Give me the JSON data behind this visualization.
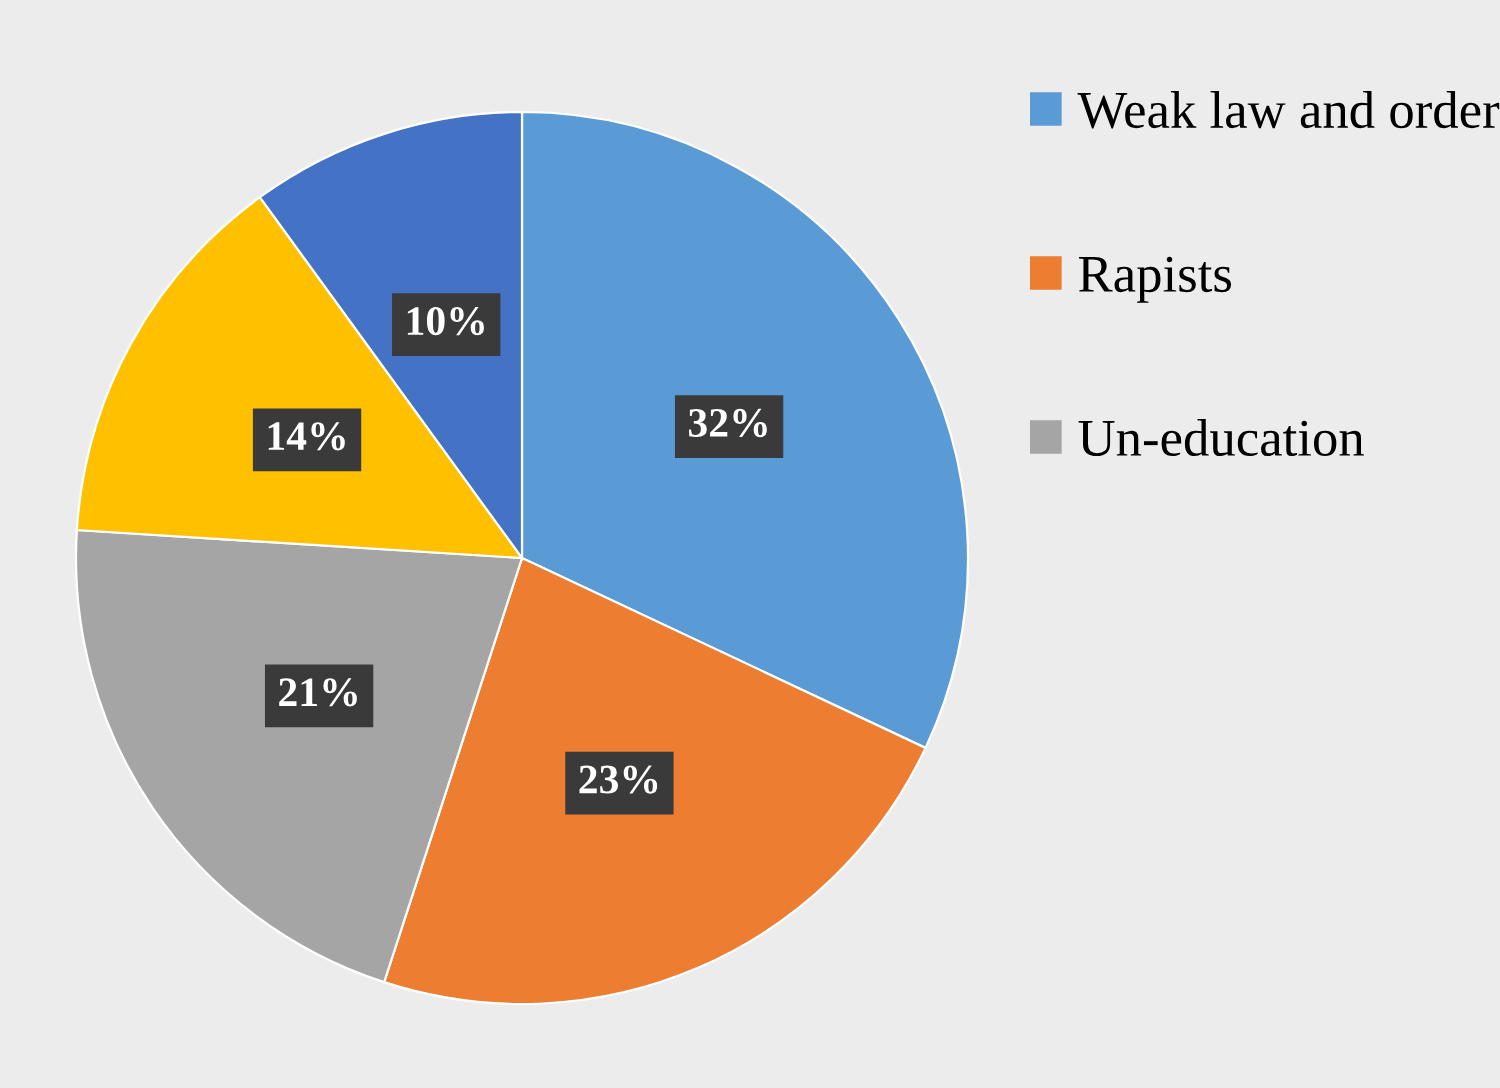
{
  "chart_data": {
    "type": "pie",
    "categories": [
      "Weak law and order",
      "Rapists",
      "Un-education",
      null,
      null
    ],
    "values": [
      32,
      23,
      21,
      14,
      10
    ],
    "colors": [
      "#5b9bd5",
      "#ed7d31",
      "#a5a5a5",
      "#ffc000",
      "#4472c4"
    ],
    "value_labels": [
      "32%",
      "23%",
      "21%",
      "14%",
      "10%"
    ],
    "legend": "right"
  }
}
